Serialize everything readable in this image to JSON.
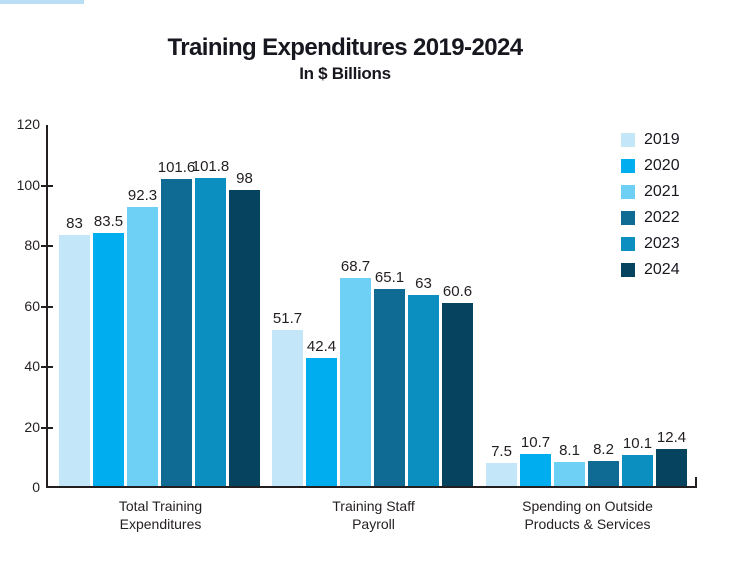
{
  "page": {
    "accent_strip_color": "#b9def5"
  },
  "chart_data": {
    "type": "bar",
    "title": "Training Expenditures 2019-2024",
    "subtitle": "In $ Billions",
    "categories": [
      "Total Training\nExpenditures",
      "Training Staff\nPayroll",
      "Spending on Outside\nProducts & Services"
    ],
    "series": [
      {
        "name": "2019",
        "color": "#c3e6f9",
        "values": [
          83,
          51.7,
          7.5
        ]
      },
      {
        "name": "2020",
        "color": "#00aeef",
        "values": [
          83.5,
          42.4,
          10.7
        ]
      },
      {
        "name": "2021",
        "color": "#6fd0f6",
        "values": [
          92.3,
          68.7,
          8.1
        ]
      },
      {
        "name": "2022",
        "color": "#0f6b94",
        "values": [
          101.6,
          65.1,
          8.2
        ]
      },
      {
        "name": "2023",
        "color": "#0a8fc0",
        "values": [
          101.8,
          63,
          10.1
        ]
      },
      {
        "name": "2024",
        "color": "#05435f",
        "values": [
          98,
          60.6,
          12.4
        ]
      }
    ],
    "value_labels": true,
    "ylim": [
      0,
      120
    ],
    "yticks": [
      0,
      20,
      40,
      60,
      80,
      100,
      120
    ],
    "grid": false,
    "legend_position": "right"
  }
}
